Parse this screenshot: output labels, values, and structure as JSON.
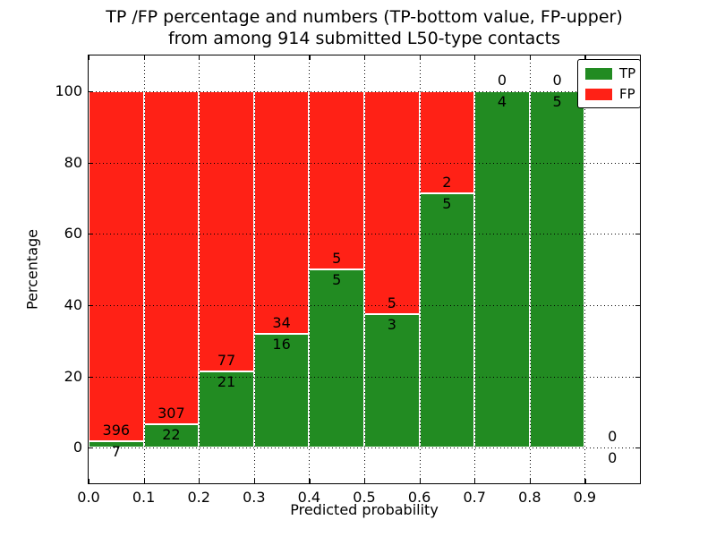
{
  "chart_data": {
    "type": "bar",
    "stacked": true,
    "normalized_to_percent": true,
    "title_lines": [
      "TP /FP percentage and numbers (TP-bottom value, FP-upper)",
      "from among 914 submitted L50-type contacts"
    ],
    "xlabel": "Predicted probability",
    "ylabel": "Percentage",
    "xlim": [
      0.0,
      1.0
    ],
    "ylim": [
      -10,
      110
    ],
    "grid": true,
    "x_ticks": [
      0.0,
      0.1,
      0.2,
      0.3,
      0.4,
      0.5,
      0.6,
      0.7,
      0.8,
      0.9
    ],
    "x_tick_labels": [
      "0.0",
      "0.1",
      "0.2",
      "0.3",
      "0.4",
      "0.5",
      "0.6",
      "0.7",
      "0.8",
      "0.9"
    ],
    "y_ticks": [
      0,
      20,
      40,
      60,
      80,
      100
    ],
    "y_tick_labels": [
      "0",
      "20",
      "40",
      "60",
      "80",
      "100"
    ],
    "total_contacts": 914,
    "bins": [
      {
        "range": [
          0.0,
          0.1
        ],
        "tp": 7,
        "fp": 396,
        "tp_pct": 1.7
      },
      {
        "range": [
          0.1,
          0.2
        ],
        "tp": 22,
        "fp": 307,
        "tp_pct": 6.7
      },
      {
        "range": [
          0.2,
          0.3
        ],
        "tp": 21,
        "fp": 77,
        "tp_pct": 21.4
      },
      {
        "range": [
          0.3,
          0.4
        ],
        "tp": 16,
        "fp": 34,
        "tp_pct": 32.0
      },
      {
        "range": [
          0.4,
          0.5
        ],
        "tp": 5,
        "fp": 5,
        "tp_pct": 50.0
      },
      {
        "range": [
          0.5,
          0.6
        ],
        "tp": 3,
        "fp": 5,
        "tp_pct": 37.5
      },
      {
        "range": [
          0.6,
          0.7
        ],
        "tp": 5,
        "fp": 2,
        "tp_pct": 71.4
      },
      {
        "range": [
          0.7,
          0.8
        ],
        "tp": 4,
        "fp": 0,
        "tp_pct": 100.0
      },
      {
        "range": [
          0.8,
          0.9
        ],
        "tp": 5,
        "fp": 0,
        "tp_pct": 100.0
      },
      {
        "range": [
          0.9,
          1.0
        ],
        "tp": 0,
        "fp": 0,
        "tp_pct": 0.0
      }
    ],
    "legend": {
      "position": "upper right",
      "entries": [
        {
          "label": "TP",
          "color": "#228b22"
        },
        {
          "label": "FP",
          "color": "#ff2116"
        }
      ]
    },
    "colors": {
      "tp": "#228b22",
      "fp": "#ff2116",
      "grid": "#000000",
      "background": "#ffffff"
    }
  }
}
